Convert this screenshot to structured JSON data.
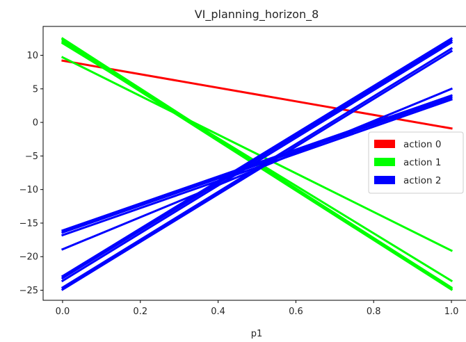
{
  "chart_data": {
    "type": "line",
    "title": "VI_planning_horizon_8",
    "xlabel": "p1",
    "ylabel": "",
    "xlim": [
      -0.05,
      1.05
    ],
    "ylim": [
      -26.5,
      14.3
    ],
    "xticks": [
      0.0,
      0.2,
      0.4,
      0.6,
      0.8,
      1.0
    ],
    "xtick_labels": [
      "0.0",
      "0.2",
      "0.4",
      "0.6",
      "0.8",
      "1.0"
    ],
    "yticks": [
      10,
      5,
      0,
      -5,
      -10,
      -15,
      -20,
      -25
    ],
    "ytick_labels": [
      "10",
      "5",
      "0",
      "−5",
      "−10",
      "−15",
      "−20",
      "−25"
    ],
    "grid": false,
    "legend": {
      "placement": "center-right",
      "entries": [
        {
          "label": "action 0",
          "color": "#ff0000"
        },
        {
          "label": "action 1",
          "color": "#00ff00"
        },
        {
          "label": "action 2",
          "color": "#0000ff"
        }
      ]
    },
    "colors": {
      "action 0": "#ff0000",
      "action 1": "#00ff00",
      "action 2": "#0000ff"
    },
    "series": [
      {
        "action": 0,
        "x": [
          0,
          1
        ],
        "y": [
          9.2,
          -0.9
        ]
      },
      {
        "action": 1,
        "x": [
          0,
          1
        ],
        "y": [
          12.5,
          -24.8
        ]
      },
      {
        "action": 1,
        "x": [
          0,
          1
        ],
        "y": [
          12.3,
          -24.6
        ]
      },
      {
        "action": 1,
        "x": [
          0,
          1
        ],
        "y": [
          12.0,
          -24.9
        ]
      },
      {
        "action": 1,
        "x": [
          0,
          1
        ],
        "y": [
          11.8,
          -23.6
        ]
      },
      {
        "action": 1,
        "x": [
          0,
          1
        ],
        "y": [
          9.7,
          -19.1
        ]
      },
      {
        "action": 2,
        "x": [
          0,
          1
        ],
        "y": [
          -22.9,
          12.5
        ]
      },
      {
        "action": 2,
        "x": [
          0,
          1
        ],
        "y": [
          -23.2,
          12.2
        ]
      },
      {
        "action": 2,
        "x": [
          0,
          1
        ],
        "y": [
          -23.6,
          11.9
        ]
      },
      {
        "action": 2,
        "x": [
          0,
          1
        ],
        "y": [
          -24.6,
          11.0
        ]
      },
      {
        "action": 2,
        "x": [
          0,
          1
        ],
        "y": [
          -24.9,
          10.6
        ]
      },
      {
        "action": 2,
        "x": [
          0,
          1
        ],
        "y": [
          -16.1,
          4.0
        ]
      },
      {
        "action": 2,
        "x": [
          0,
          1
        ],
        "y": [
          -16.4,
          3.7
        ]
      },
      {
        "action": 2,
        "x": [
          0,
          1
        ],
        "y": [
          -16.8,
          3.4
        ]
      },
      {
        "action": 2,
        "x": [
          0,
          1
        ],
        "y": [
          -18.9,
          5.0
        ]
      }
    ]
  }
}
